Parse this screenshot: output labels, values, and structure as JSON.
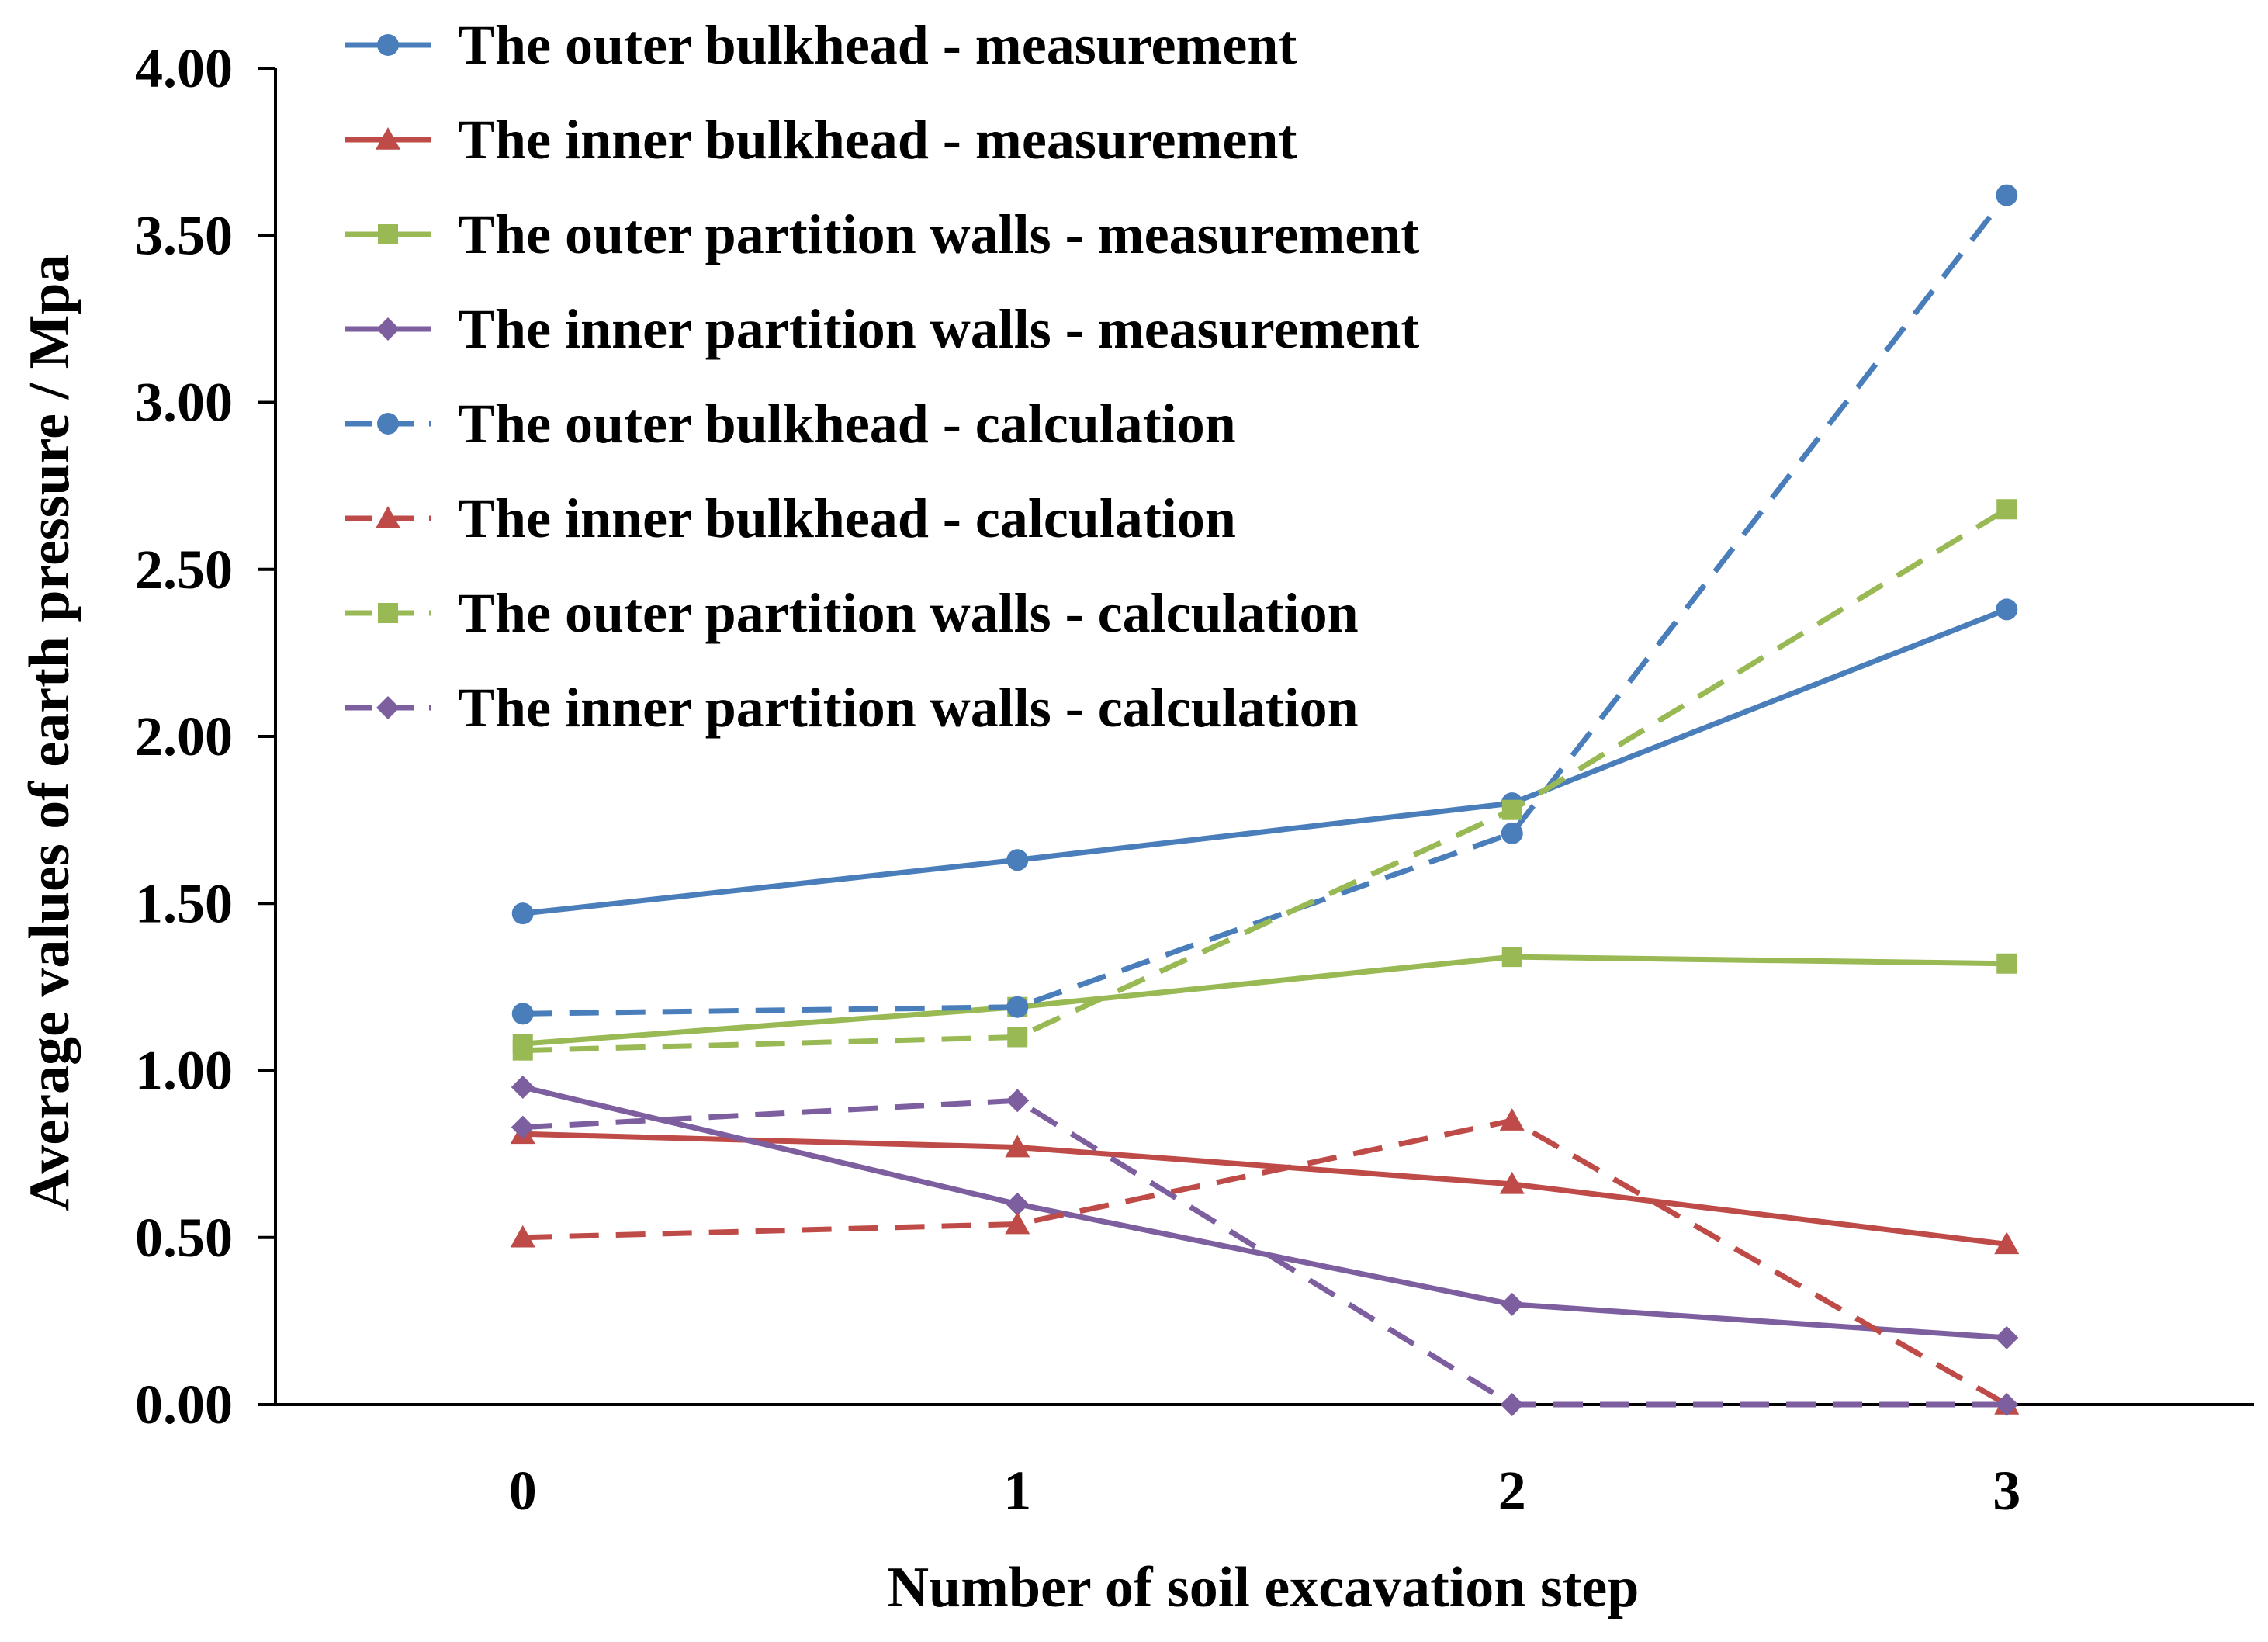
{
  "chart_data": {
    "type": "line",
    "title": "",
    "xlabel": "Number of soil excavation step",
    "ylabel": "Average values of earth pressure / Mpa",
    "x": [
      0,
      1,
      2,
      3
    ],
    "x_tick_labels": [
      "0",
      "1",
      "2",
      "3"
    ],
    "xlim": [
      -0.5,
      3.5
    ],
    "ylim": [
      0,
      4
    ],
    "y_ticks": [
      0,
      0.5,
      1,
      1.5,
      2,
      2.5,
      3,
      3.5,
      4
    ],
    "y_tick_labels": [
      "0.00",
      "0.50",
      "1.00",
      "1.50",
      "2.00",
      "2.50",
      "3.00",
      "3.50",
      "4.00"
    ],
    "grid": false,
    "legend_position": "top-left",
    "series": [
      {
        "name": "The outer bulkhead - measurement",
        "values": [
          1.47,
          1.63,
          1.8,
          2.38
        ],
        "color": "#4a7ebb",
        "dash": "solid",
        "marker": "circle"
      },
      {
        "name": "The inner bulkhead - measurement",
        "values": [
          0.81,
          0.77,
          0.66,
          0.48
        ],
        "color": "#be4b48",
        "dash": "solid",
        "marker": "triangle"
      },
      {
        "name": "The outer partition walls - measurement",
        "values": [
          1.08,
          1.19,
          1.34,
          1.32
        ],
        "color": "#98b954",
        "dash": "solid",
        "marker": "square"
      },
      {
        "name": "The inner partition walls - measurement",
        "values": [
          0.95,
          0.6,
          0.3,
          0.2
        ],
        "color": "#7d5fa0",
        "dash": "solid",
        "marker": "diamond"
      },
      {
        "name": "The outer bulkhead - calculation",
        "values": [
          1.17,
          1.19,
          1.71,
          3.62
        ],
        "color": "#4a7ebb",
        "dash": "dashed",
        "marker": "circle"
      },
      {
        "name": "The inner bulkhead - calculation",
        "values": [
          0.5,
          0.54,
          0.85,
          0.0
        ],
        "color": "#be4b48",
        "dash": "dashed",
        "marker": "triangle"
      },
      {
        "name": "The outer partition walls - calculation",
        "values": [
          1.06,
          1.1,
          1.78,
          2.68
        ],
        "color": "#98b954",
        "dash": "dashed",
        "marker": "square"
      },
      {
        "name": "The inner partition walls - calculation",
        "values": [
          0.83,
          0.91,
          0.0,
          0.0
        ],
        "color": "#7d5fa0",
        "dash": "dashed",
        "marker": "diamond"
      }
    ]
  }
}
